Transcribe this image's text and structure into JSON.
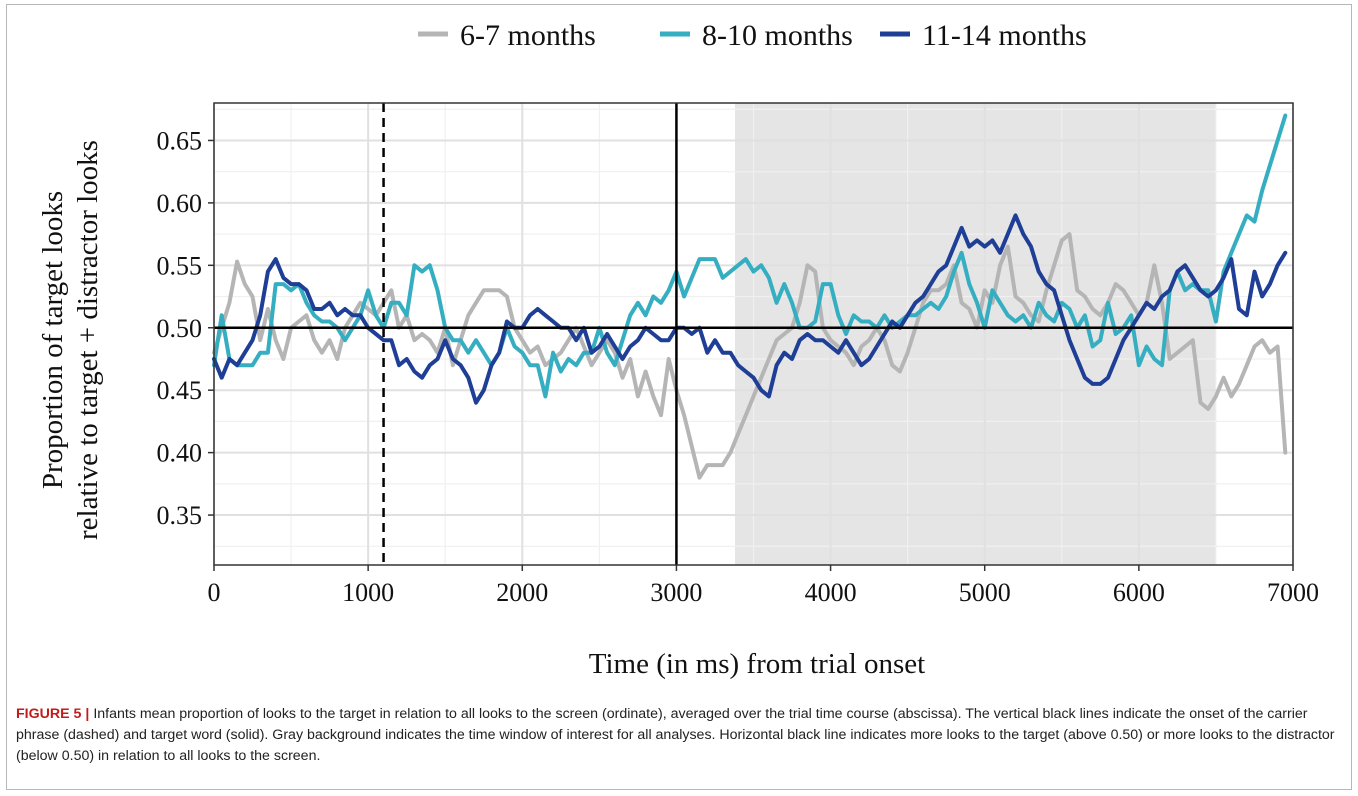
{
  "figure": {
    "caption_label": "FIGURE 5",
    "caption_separator": "|",
    "caption_text": "Infants mean proportion of looks to the target in relation to all looks to the screen (ordinate), averaged over the trial time course (abscissa). The vertical black lines indicate the onset of the carrier phrase (dashed) and target word (solid). Gray background indicates the time window of interest for all analyses. Horizontal black line indicates more looks to the target (above 0.50) or more looks to the distractor (below 0.50) in relation to all looks to the screen."
  },
  "chart_data": {
    "type": "line",
    "xlabel": "Time (in ms) from trial onset",
    "ylabel": [
      "Proportion of target looks",
      "relative to target + distractor looks"
    ],
    "xlim": [
      0,
      7000
    ],
    "ylim": [
      0.31,
      0.68
    ],
    "xticks": [
      0,
      1000,
      2000,
      3000,
      4000,
      5000,
      6000,
      7000
    ],
    "xtick_labels": [
      "0",
      "1000",
      "2000",
      "3000",
      "4000",
      "5000",
      "6000",
      "7000"
    ],
    "yticks": [
      0.35,
      0.4,
      0.45,
      0.5,
      0.55,
      0.6,
      0.65
    ],
    "ytick_labels": [
      "0.35",
      "0.40",
      "0.45",
      "0.50",
      "0.55",
      "0.60",
      "0.65"
    ],
    "grid": true,
    "legend_position": "top",
    "shaded_window": [
      3380,
      6500
    ],
    "reference_lines": {
      "carrier_phrase_onset_dashed": 1100,
      "target_word_onset_solid": 3000,
      "horizontal": 0.5
    },
    "colors": {
      "6-7 months": "#b5b5b5",
      "8-10 months": "#35aec1",
      "11-14 months": "#1f3f96",
      "shade": "#e5e5e5",
      "grid_major": "#e0e0e0",
      "grid_minor": "#f0f0f0",
      "reference": "#000000"
    },
    "series": [
      {
        "name": "6-7 months",
        "x": [
          0,
          50,
          100,
          150,
          200,
          250,
          300,
          350,
          400,
          450,
          500,
          550,
          600,
          650,
          700,
          750,
          800,
          850,
          900,
          950,
          1000,
          1050,
          1100,
          1150,
          1200,
          1250,
          1300,
          1350,
          1400,
          1450,
          1500,
          1550,
          1600,
          1650,
          1700,
          1750,
          1800,
          1850,
          1900,
          1950,
          2000,
          2050,
          2100,
          2150,
          2200,
          2250,
          2300,
          2350,
          2400,
          2450,
          2500,
          2550,
          2600,
          2650,
          2700,
          2750,
          2800,
          2850,
          2900,
          2950,
          3000,
          3050,
          3100,
          3150,
          3200,
          3250,
          3300,
          3350,
          3400,
          3450,
          3500,
          3550,
          3600,
          3650,
          3700,
          3750,
          3800,
          3850,
          3900,
          3950,
          4000,
          4050,
          4100,
          4150,
          4200,
          4250,
          4300,
          4350,
          4400,
          4450,
          4500,
          4550,
          4600,
          4650,
          4700,
          4750,
          4800,
          4850,
          4900,
          4950,
          5000,
          5050,
          5100,
          5150,
          5200,
          5250,
          5300,
          5350,
          5400,
          5450,
          5500,
          5550,
          5600,
          5650,
          5700,
          5750,
          5800,
          5850,
          5900,
          5950,
          6000,
          6050,
          6100,
          6150,
          6200,
          6250,
          6300,
          6350,
          6400,
          6450,
          6500,
          6550,
          6600,
          6650,
          6700,
          6750,
          6800,
          6850,
          6900,
          6950
        ],
        "y": [
          0.48,
          0.5,
          0.52,
          0.553,
          0.535,
          0.525,
          0.49,
          0.515,
          0.49,
          0.475,
          0.5,
          0.505,
          0.51,
          0.49,
          0.48,
          0.49,
          0.475,
          0.5,
          0.51,
          0.52,
          0.515,
          0.51,
          0.52,
          0.53,
          0.5,
          0.51,
          0.49,
          0.495,
          0.49,
          0.48,
          0.5,
          0.47,
          0.49,
          0.51,
          0.52,
          0.53,
          0.53,
          0.53,
          0.525,
          0.5,
          0.49,
          0.48,
          0.485,
          0.47,
          0.475,
          0.48,
          0.49,
          0.5,
          0.485,
          0.47,
          0.48,
          0.49,
          0.48,
          0.46,
          0.475,
          0.445,
          0.465,
          0.445,
          0.43,
          0.475,
          0.45,
          0.43,
          0.405,
          0.38,
          0.39,
          0.39,
          0.39,
          0.4,
          0.415,
          0.43,
          0.445,
          0.46,
          0.475,
          0.49,
          0.495,
          0.5,
          0.52,
          0.55,
          0.545,
          0.5,
          0.49,
          0.485,
          0.48,
          0.47,
          0.485,
          0.49,
          0.5,
          0.49,
          0.47,
          0.465,
          0.48,
          0.5,
          0.52,
          0.53,
          0.53,
          0.535,
          0.55,
          0.52,
          0.515,
          0.5,
          0.53,
          0.52,
          0.55,
          0.565,
          0.525,
          0.52,
          0.51,
          0.505,
          0.53,
          0.55,
          0.57,
          0.575,
          0.53,
          0.525,
          0.515,
          0.51,
          0.52,
          0.535,
          0.53,
          0.52,
          0.51,
          0.52,
          0.55,
          0.52,
          0.475,
          0.48,
          0.485,
          0.49,
          0.44,
          0.435,
          0.445,
          0.46,
          0.445,
          0.455,
          0.47,
          0.485,
          0.49,
          0.48,
          0.485,
          0.4
        ]
      },
      {
        "name": "8-10 months",
        "x": [
          0,
          50,
          100,
          150,
          200,
          250,
          300,
          350,
          400,
          450,
          500,
          550,
          600,
          650,
          700,
          750,
          800,
          850,
          900,
          950,
          1000,
          1050,
          1100,
          1150,
          1200,
          1250,
          1300,
          1350,
          1400,
          1450,
          1500,
          1550,
          1600,
          1650,
          1700,
          1750,
          1800,
          1850,
          1900,
          1950,
          2000,
          2050,
          2100,
          2150,
          2200,
          2250,
          2300,
          2350,
          2400,
          2450,
          2500,
          2550,
          2600,
          2650,
          2700,
          2750,
          2800,
          2850,
          2900,
          2950,
          3000,
          3050,
          3100,
          3150,
          3200,
          3250,
          3300,
          3350,
          3400,
          3450,
          3500,
          3550,
          3600,
          3650,
          3700,
          3750,
          3800,
          3850,
          3900,
          3950,
          4000,
          4050,
          4100,
          4150,
          4200,
          4250,
          4300,
          4350,
          4400,
          4450,
          4500,
          4550,
          4600,
          4650,
          4700,
          4750,
          4800,
          4850,
          4900,
          4950,
          5000,
          5050,
          5100,
          5150,
          5200,
          5250,
          5300,
          5350,
          5400,
          5450,
          5500,
          5550,
          5600,
          5650,
          5700,
          5750,
          5800,
          5850,
          5900,
          5950,
          6000,
          6050,
          6100,
          6150,
          6200,
          6250,
          6300,
          6350,
          6400,
          6450,
          6500,
          6550,
          6600,
          6650,
          6700,
          6750,
          6800,
          6850,
          6900,
          6950
        ],
        "y": [
          0.47,
          0.51,
          0.475,
          0.47,
          0.47,
          0.47,
          0.48,
          0.48,
          0.535,
          0.535,
          0.53,
          0.535,
          0.52,
          0.51,
          0.505,
          0.505,
          0.5,
          0.49,
          0.5,
          0.51,
          0.53,
          0.51,
          0.5,
          0.52,
          0.52,
          0.51,
          0.55,
          0.545,
          0.55,
          0.53,
          0.5,
          0.49,
          0.49,
          0.48,
          0.49,
          0.48,
          0.47,
          0.48,
          0.5,
          0.485,
          0.48,
          0.47,
          0.47,
          0.445,
          0.48,
          0.465,
          0.475,
          0.47,
          0.48,
          0.48,
          0.5,
          0.48,
          0.47,
          0.49,
          0.51,
          0.52,
          0.51,
          0.525,
          0.52,
          0.53,
          0.545,
          0.525,
          0.54,
          0.555,
          0.555,
          0.555,
          0.54,
          0.545,
          0.55,
          0.555,
          0.545,
          0.55,
          0.54,
          0.52,
          0.535,
          0.52,
          0.5,
          0.5,
          0.505,
          0.535,
          0.535,
          0.51,
          0.495,
          0.51,
          0.505,
          0.505,
          0.5,
          0.51,
          0.5,
          0.505,
          0.51,
          0.51,
          0.515,
          0.52,
          0.515,
          0.525,
          0.545,
          0.56,
          0.535,
          0.52,
          0.5,
          0.53,
          0.52,
          0.51,
          0.505,
          0.51,
          0.5,
          0.52,
          0.51,
          0.505,
          0.52,
          0.515,
          0.5,
          0.51,
          0.485,
          0.49,
          0.52,
          0.495,
          0.5,
          0.51,
          0.47,
          0.485,
          0.475,
          0.47,
          0.53,
          0.545,
          0.53,
          0.535,
          0.53,
          0.53,
          0.505,
          0.545,
          0.56,
          0.575,
          0.59,
          0.585,
          0.61,
          0.63,
          0.65,
          0.67
        ]
      },
      {
        "name": "11-14 months",
        "x": [
          0,
          50,
          100,
          150,
          200,
          250,
          300,
          350,
          400,
          450,
          500,
          550,
          600,
          650,
          700,
          750,
          800,
          850,
          900,
          950,
          1000,
          1050,
          1100,
          1150,
          1200,
          1250,
          1300,
          1350,
          1400,
          1450,
          1500,
          1550,
          1600,
          1650,
          1700,
          1750,
          1800,
          1850,
          1900,
          1950,
          2000,
          2050,
          2100,
          2150,
          2200,
          2250,
          2300,
          2350,
          2400,
          2450,
          2500,
          2550,
          2600,
          2650,
          2700,
          2750,
          2800,
          2850,
          2900,
          2950,
          3000,
          3050,
          3100,
          3150,
          3200,
          3250,
          3300,
          3350,
          3400,
          3450,
          3500,
          3550,
          3600,
          3650,
          3700,
          3750,
          3800,
          3850,
          3900,
          3950,
          4000,
          4050,
          4100,
          4150,
          4200,
          4250,
          4300,
          4350,
          4400,
          4450,
          4500,
          4550,
          4600,
          4650,
          4700,
          4750,
          4800,
          4850,
          4900,
          4950,
          5000,
          5050,
          5100,
          5150,
          5200,
          5250,
          5300,
          5350,
          5400,
          5450,
          5500,
          5550,
          5600,
          5650,
          5700,
          5750,
          5800,
          5850,
          5900,
          5950,
          6000,
          6050,
          6100,
          6150,
          6200,
          6250,
          6300,
          6350,
          6400,
          6450,
          6500,
          6550,
          6600,
          6650,
          6700,
          6750,
          6800,
          6850,
          6900,
          6950
        ],
        "y": [
          0.475,
          0.46,
          0.475,
          0.47,
          0.48,
          0.49,
          0.51,
          0.545,
          0.555,
          0.54,
          0.535,
          0.535,
          0.53,
          0.515,
          0.515,
          0.52,
          0.51,
          0.515,
          0.51,
          0.51,
          0.5,
          0.495,
          0.49,
          0.49,
          0.47,
          0.475,
          0.465,
          0.46,
          0.47,
          0.475,
          0.49,
          0.475,
          0.47,
          0.46,
          0.44,
          0.45,
          0.47,
          0.48,
          0.505,
          0.5,
          0.5,
          0.51,
          0.515,
          0.51,
          0.505,
          0.5,
          0.5,
          0.49,
          0.5,
          0.48,
          0.485,
          0.495,
          0.485,
          0.475,
          0.485,
          0.49,
          0.5,
          0.495,
          0.49,
          0.49,
          0.5,
          0.5,
          0.495,
          0.5,
          0.48,
          0.49,
          0.48,
          0.48,
          0.47,
          0.465,
          0.46,
          0.45,
          0.445,
          0.47,
          0.48,
          0.475,
          0.49,
          0.495,
          0.49,
          0.49,
          0.485,
          0.48,
          0.49,
          0.48,
          0.47,
          0.475,
          0.485,
          0.495,
          0.505,
          0.5,
          0.51,
          0.52,
          0.525,
          0.535,
          0.545,
          0.55,
          0.565,
          0.58,
          0.565,
          0.57,
          0.565,
          0.57,
          0.56,
          0.575,
          0.59,
          0.575,
          0.565,
          0.545,
          0.535,
          0.53,
          0.51,
          0.49,
          0.475,
          0.46,
          0.455,
          0.455,
          0.46,
          0.475,
          0.49,
          0.5,
          0.51,
          0.52,
          0.515,
          0.525,
          0.53,
          0.545,
          0.55,
          0.54,
          0.53,
          0.525,
          0.53,
          0.54,
          0.555,
          0.515,
          0.51,
          0.545,
          0.525,
          0.535,
          0.55,
          0.56
        ]
      }
    ]
  }
}
